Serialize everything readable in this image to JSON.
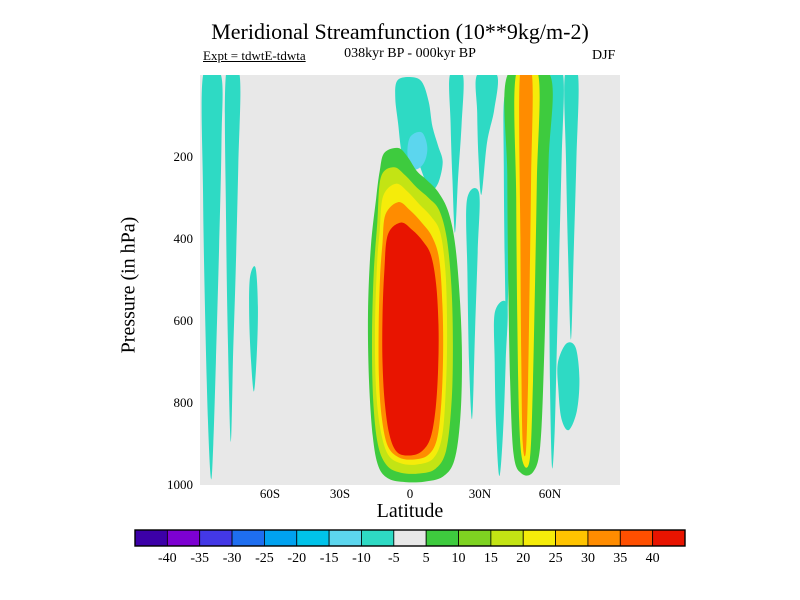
{
  "title": "Meridional Streamfunction (10**9kg/m-2)",
  "annotations": {
    "expt": "Expt = tdwtE-tdwta",
    "period": "038kyr BP - 000kyr BP",
    "season": "DJF"
  },
  "axes": {
    "x_label": "Latitude",
    "y_label": "Pressure (in hPa)"
  },
  "chart_data": {
    "type": "heatmap",
    "subtype": "filled-contour",
    "title": "Meridional Streamfunction (10**9kg/m-2)",
    "xlabel": "Latitude",
    "ylabel": "Pressure (in hPa)",
    "x_range": [
      -90,
      90
    ],
    "y_range": [
      0,
      1000
    ],
    "y_axis_note": "pressure increases downward, 0 hPa at top, 1000 hPa at bottom",
    "background_color": "#e8e8e8",
    "grid": false,
    "x_ticks": [
      {
        "label": "60S",
        "value": -60
      },
      {
        "label": "30S",
        "value": -30
      },
      {
        "label": "0",
        "value": 0
      },
      {
        "label": "30N",
        "value": 30
      },
      {
        "label": "60N",
        "value": 60
      }
    ],
    "y_ticks": [
      {
        "label": "200",
        "value": 200
      },
      {
        "label": "400",
        "value": 400
      },
      {
        "label": "600",
        "value": 600
      },
      {
        "label": "800",
        "value": 800
      },
      {
        "label": "1000",
        "value": 1000
      }
    ],
    "levels": [
      -40,
      -35,
      -30,
      -25,
      -20,
      -15,
      -10,
      -5,
      5,
      10,
      15,
      20,
      25,
      30,
      35,
      40
    ],
    "colorbar_tick_labels": [
      "-40",
      "-35",
      "-30",
      "-25",
      "-20",
      "-15",
      "-10",
      "-5",
      "5",
      "10",
      "15",
      "20",
      "25",
      "30",
      "35",
      "40"
    ],
    "palette": [
      "#3c00a8",
      "#7d00d2",
      "#4338e6",
      "#1e6ef0",
      "#00a2f0",
      "#00c3ea",
      "#5cd6ee",
      "#2edac4",
      "#e8e8e8",
      "#3ecb3e",
      "#7ed321",
      "#c3e414",
      "#f5ec0a",
      "#ffc400",
      "#ff8c00",
      "#ff4f00",
      "#e81400"
    ],
    "legend_position": "bottom-colorbar",
    "features": [
      {
        "name": "cyan-band-85S",
        "value_band": "-10 to -5",
        "color_index": 7,
        "points": [
          [
            -88.7,
            2
          ],
          [
            -81,
            0
          ],
          [
            -80.8,
            160
          ],
          [
            -81.8,
            420
          ],
          [
            -83.2,
            700
          ],
          [
            -84.3,
            900
          ],
          [
            -85.3,
            985
          ],
          [
            -86.6,
            840
          ],
          [
            -87.9,
            560
          ],
          [
            -88.7,
            280
          ]
        ]
      },
      {
        "name": "cyan-band-76S",
        "value_band": "-10 to -5",
        "color_index": 7,
        "points": [
          [
            -78.9,
            0
          ],
          [
            -73,
            2
          ],
          [
            -73.6,
            220
          ],
          [
            -74.6,
            460
          ],
          [
            -75.8,
            680
          ],
          [
            -76.8,
            895
          ],
          [
            -78,
            660
          ],
          [
            -78.8,
            360
          ]
        ]
      },
      {
        "name": "cyan-sliver-67S",
        "value_band": "-10 to -5",
        "color_index": 7,
        "points": [
          [
            -68.6,
            495
          ],
          [
            -66.2,
            470
          ],
          [
            -65.2,
            565
          ],
          [
            -65.7,
            685
          ],
          [
            -66.9,
            772
          ],
          [
            -68.1,
            700
          ],
          [
            -68.9,
            590
          ]
        ]
      },
      {
        "name": "cyan-blob-tropics-upper",
        "value_band": "-10 to -5",
        "color_index": 7,
        "points": [
          [
            -5.5,
            14
          ],
          [
            0,
            5
          ],
          [
            5,
            16
          ],
          [
            8,
            65
          ],
          [
            9.6,
            125
          ],
          [
            12,
            172
          ],
          [
            14,
            212
          ],
          [
            12.2,
            262
          ],
          [
            9,
            282
          ],
          [
            6.2,
            252
          ],
          [
            3,
            212
          ],
          [
            -0.8,
            232
          ],
          [
            -3.6,
            188
          ],
          [
            -5.1,
            118
          ],
          [
            -6.3,
            58
          ]
        ]
      },
      {
        "name": "blue-spot-tropics-upper",
        "value_band": "-15 to -10",
        "color_index": 6,
        "points": [
          [
            0,
            152
          ],
          [
            5,
            140
          ],
          [
            7.4,
            176
          ],
          [
            6,
            214
          ],
          [
            2,
            230
          ],
          [
            -1,
            198
          ]
        ]
      },
      {
        "name": "cyan-strip-20N-upper",
        "value_band": "-10 to -5",
        "color_index": 7,
        "points": [
          [
            17.1,
            0
          ],
          [
            22.7,
            0
          ],
          [
            22.1,
            120
          ],
          [
            20.6,
            250
          ],
          [
            19.3,
            385
          ],
          [
            18.2,
            258
          ],
          [
            17.4,
            118
          ]
        ]
      },
      {
        "name": "cyan-patch-33N-top",
        "value_band": "-10 to -5",
        "color_index": 7,
        "points": [
          [
            28.7,
            0
          ],
          [
            37.3,
            0
          ],
          [
            36.1,
            85
          ],
          [
            33,
            165
          ],
          [
            30.6,
            292
          ],
          [
            29.3,
            198
          ],
          [
            28.8,
            92
          ]
        ]
      },
      {
        "name": "cyan-strip-27N",
        "value_band": "-10 to -5",
        "color_index": 7,
        "points": [
          [
            24.4,
            305
          ],
          [
            29.6,
            288
          ],
          [
            29,
            432
          ],
          [
            27.9,
            620
          ],
          [
            26.6,
            838
          ],
          [
            25.3,
            698
          ],
          [
            24.6,
            482
          ]
        ]
      },
      {
        "name": "cyan-strip-39N-lower",
        "value_band": "-10 to -5",
        "color_index": 7,
        "points": [
          [
            36.4,
            578
          ],
          [
            41.6,
            560
          ],
          [
            41,
            700
          ],
          [
            39.9,
            868
          ],
          [
            38.3,
            978
          ],
          [
            36.9,
            858
          ],
          [
            36.3,
            700
          ]
        ]
      },
      {
        "name": "cyan-strip-42N-upper",
        "value_band": "-10 to -5",
        "color_index": 7,
        "points": [
          [
            40.3,
            62
          ],
          [
            43.5,
            40
          ],
          [
            43.1,
            252
          ],
          [
            42.3,
            478
          ],
          [
            41.3,
            640
          ],
          [
            40.6,
            452
          ],
          [
            40.2,
            222
          ]
        ]
      },
      {
        "name": "cyan-band-62N",
        "value_band": "-10 to -5",
        "color_index": 7,
        "points": [
          [
            59.2,
            0
          ],
          [
            65.6,
            0
          ],
          [
            65,
            200
          ],
          [
            64,
            430
          ],
          [
            63,
            650
          ],
          [
            62,
            868
          ],
          [
            60.9,
            958
          ],
          [
            60.1,
            790
          ],
          [
            59.6,
            500
          ],
          [
            59.3,
            245
          ]
        ]
      },
      {
        "name": "cyan-blob-68N",
        "value_band": "-10 to -5",
        "color_index": 7,
        "points": [
          [
            63.4,
            702
          ],
          [
            67,
            655
          ],
          [
            71,
            665
          ],
          [
            72.6,
            740
          ],
          [
            71.5,
            820
          ],
          [
            68,
            866
          ],
          [
            64.9,
            838
          ],
          [
            63.6,
            768
          ]
        ]
      },
      {
        "name": "cyan-strip-69N-upper",
        "value_band": "-10 to -5",
        "color_index": 7,
        "points": [
          [
            66.4,
            0
          ],
          [
            72,
            0
          ],
          [
            71.3,
            205
          ],
          [
            70.2,
            425
          ],
          [
            69,
            645
          ],
          [
            67.8,
            450
          ],
          [
            66.9,
            218
          ]
        ]
      },
      {
        "name": "green-column-50N",
        "value_band": "5 to 10",
        "color_index": 9,
        "points": [
          [
            41.8,
            0
          ],
          [
            60,
            0
          ],
          [
            59.4,
            210
          ],
          [
            58.5,
            460
          ],
          [
            57.4,
            705
          ],
          [
            55.8,
            905
          ],
          [
            52.8,
            968
          ],
          [
            47.8,
            972
          ],
          [
            44.4,
            925
          ],
          [
            42.9,
            745
          ],
          [
            42.1,
            495
          ],
          [
            41.7,
            245
          ]
        ]
      },
      {
        "name": "yellow-column-50N",
        "value_band": "20 to 25",
        "color_index": 12,
        "points": [
          [
            45.4,
            0
          ],
          [
            55,
            0
          ],
          [
            54.4,
            252
          ],
          [
            53.6,
            502
          ],
          [
            52.7,
            748
          ],
          [
            51.4,
            935
          ],
          [
            48.4,
            945
          ],
          [
            46.8,
            845
          ],
          [
            46,
            598
          ],
          [
            45.5,
            298
          ]
        ]
      },
      {
        "name": "orange-column-50N",
        "value_band": "30 to 35",
        "color_index": 14,
        "points": [
          [
            47.1,
            0
          ],
          [
            52.3,
            0
          ],
          [
            51.9,
            250
          ],
          [
            51.3,
            500
          ],
          [
            50.6,
            748
          ],
          [
            49.7,
            916
          ],
          [
            48.3,
            896
          ],
          [
            47.7,
            698
          ],
          [
            47.3,
            398
          ]
        ]
      },
      {
        "name": "hadley-cell-green",
        "value_band": "5 to 10",
        "color_index": 9,
        "points": [
          [
            -11,
            190
          ],
          [
            -5,
            178
          ],
          [
            -1,
            200
          ],
          [
            3,
            235
          ],
          [
            7,
            255
          ],
          [
            12,
            285
          ],
          [
            16.5,
            335
          ],
          [
            19.5,
            420
          ],
          [
            21.5,
            560
          ],
          [
            22.3,
            700
          ],
          [
            21.5,
            840
          ],
          [
            19,
            940
          ],
          [
            14,
            980
          ],
          [
            6,
            992
          ],
          [
            -2,
            993
          ],
          [
            -9,
            985
          ],
          [
            -13.5,
            955
          ],
          [
            -16,
            880
          ],
          [
            -17.6,
            740
          ],
          [
            -18,
            580
          ],
          [
            -16.8,
            420
          ],
          [
            -14.5,
            300
          ],
          [
            -13,
            235
          ]
        ]
      },
      {
        "name": "hadley-cell-yellow-green",
        "value_band": "15 to 20",
        "color_index": 11,
        "points": [
          [
            -12.5,
            250
          ],
          [
            -7,
            225
          ],
          [
            -2,
            245
          ],
          [
            3,
            275
          ],
          [
            8,
            300
          ],
          [
            12.5,
            330
          ],
          [
            15.8,
            400
          ],
          [
            17.8,
            520
          ],
          [
            18.4,
            660
          ],
          [
            17.8,
            800
          ],
          [
            15.5,
            915
          ],
          [
            11,
            960
          ],
          [
            4,
            972
          ],
          [
            -4,
            970
          ],
          [
            -10,
            952
          ],
          [
            -13.8,
            900
          ],
          [
            -15.8,
            790
          ],
          [
            -16.3,
            640
          ],
          [
            -15.5,
            480
          ],
          [
            -14,
            360
          ]
        ]
      },
      {
        "name": "hadley-cell-yellow",
        "value_band": "20 to 25",
        "color_index": 12,
        "points": [
          [
            -11.5,
            295
          ],
          [
            -6,
            265
          ],
          [
            -1,
            285
          ],
          [
            4,
            315
          ],
          [
            9,
            345
          ],
          [
            13,
            385
          ],
          [
            15.2,
            480
          ],
          [
            15.9,
            620
          ],
          [
            15.4,
            760
          ],
          [
            13.8,
            880
          ],
          [
            10,
            935
          ],
          [
            3,
            950
          ],
          [
            -4,
            947
          ],
          [
            -9.5,
            925
          ],
          [
            -12.8,
            860
          ],
          [
            -14.6,
            760
          ],
          [
            -15,
            620
          ],
          [
            -14.2,
            470
          ],
          [
            -13,
            380
          ]
        ]
      },
      {
        "name": "hadley-cell-orange",
        "value_band": "30 to 35",
        "color_index": 14,
        "points": [
          [
            -10.5,
            340
          ],
          [
            -5,
            310
          ],
          [
            0,
            330
          ],
          [
            5,
            360
          ],
          [
            9.5,
            395
          ],
          [
            12.5,
            450
          ],
          [
            13.9,
            560
          ],
          [
            14.2,
            680
          ],
          [
            13.4,
            800
          ],
          [
            11.5,
            890
          ],
          [
            7.5,
            928
          ],
          [
            1,
            938
          ],
          [
            -5,
            932
          ],
          [
            -9.5,
            905
          ],
          [
            -12,
            840
          ],
          [
            -13.3,
            740
          ],
          [
            -13.4,
            610
          ],
          [
            -12.8,
            490
          ],
          [
            -11.8,
            410
          ]
        ]
      },
      {
        "name": "hadley-cell-red-core",
        "value_band": "> 40",
        "color_index": 16,
        "points": [
          [
            -9.5,
            390
          ],
          [
            -4,
            360
          ],
          [
            1,
            378
          ],
          [
            5.5,
            405
          ],
          [
            9,
            440
          ],
          [
            11.2,
            510
          ],
          [
            12.2,
            610
          ],
          [
            12.1,
            710
          ],
          [
            11,
            812
          ],
          [
            8.8,
            885
          ],
          [
            5,
            918
          ],
          [
            0,
            928
          ],
          [
            -5.5,
            920
          ],
          [
            -8.8,
            878
          ],
          [
            -10.8,
            800
          ],
          [
            -11.8,
            700
          ],
          [
            -11.8,
            590
          ],
          [
            -11,
            480
          ]
        ]
      }
    ]
  }
}
